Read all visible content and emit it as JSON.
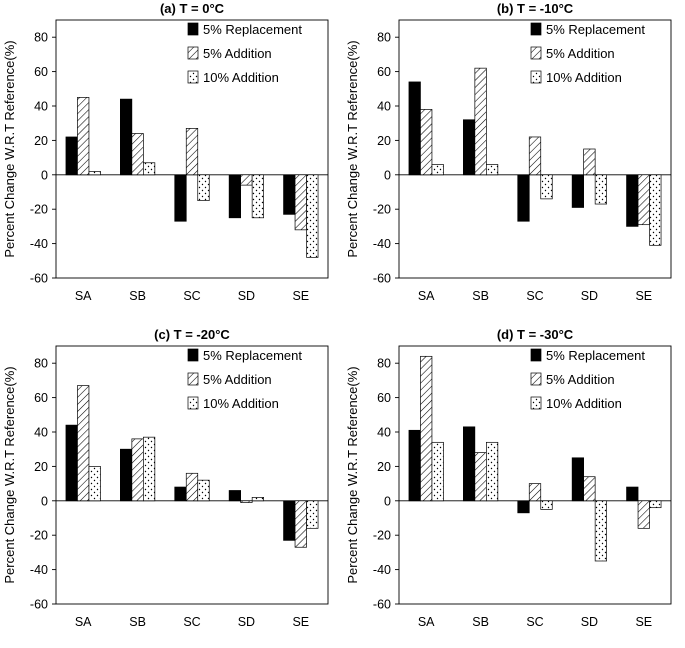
{
  "chart_data": [
    {
      "type": "bar",
      "title": "(a) T = 0°C",
      "ylabel": "Percent Change W.R.T Reference(%)",
      "xlabel": "",
      "categories": [
        "SA",
        "SB",
        "SC",
        "SD",
        "SE"
      ],
      "ylim": [
        -60,
        90
      ],
      "yticks": [
        -60,
        -40,
        -20,
        0,
        20,
        40,
        60,
        80
      ],
      "series": [
        {
          "name": "5% Replacement",
          "pattern": "solid",
          "values": [
            22,
            44,
            -27,
            -25,
            -23
          ]
        },
        {
          "name": "5% Addition",
          "pattern": "hatch",
          "values": [
            45,
            24,
            27,
            -6,
            -32
          ]
        },
        {
          "name": "10% Addition",
          "pattern": "dots",
          "values": [
            2,
            7,
            -15,
            -25,
            -48
          ]
        }
      ],
      "legend": "top-right"
    },
    {
      "type": "bar",
      "title": "(b) T = -10°C",
      "ylabel": "Percent Change W.R.T Reference(%)",
      "xlabel": "",
      "categories": [
        "SA",
        "SB",
        "SC",
        "SD",
        "SE"
      ],
      "ylim": [
        -60,
        90
      ],
      "yticks": [
        -60,
        -40,
        -20,
        0,
        20,
        40,
        60,
        80
      ],
      "series": [
        {
          "name": "5% Replacement",
          "pattern": "solid",
          "values": [
            54,
            32,
            -27,
            -19,
            -30
          ]
        },
        {
          "name": "5% Addition",
          "pattern": "hatch",
          "values": [
            38,
            62,
            22,
            15,
            -29
          ]
        },
        {
          "name": "10% Addition",
          "pattern": "dots",
          "values": [
            6,
            6,
            -14,
            -17,
            -41
          ]
        }
      ],
      "legend": "top-right"
    },
    {
      "type": "bar",
      "title": "(c) T = -20°C",
      "ylabel": "Percent Change W.R.T Reference(%)",
      "xlabel": "",
      "categories": [
        "SA",
        "SB",
        "SC",
        "SD",
        "SE"
      ],
      "ylim": [
        -60,
        90
      ],
      "yticks": [
        -60,
        -40,
        -20,
        0,
        20,
        40,
        60,
        80
      ],
      "series": [
        {
          "name": "5% Replacement",
          "pattern": "solid",
          "values": [
            44,
            30,
            8,
            6,
            -23
          ]
        },
        {
          "name": "5% Addition",
          "pattern": "hatch",
          "values": [
            67,
            36,
            16,
            -1,
            -27
          ]
        },
        {
          "name": "10% Addition",
          "pattern": "dots",
          "values": [
            20,
            37,
            12,
            2,
            -16
          ]
        }
      ],
      "legend": "top-right"
    },
    {
      "type": "bar",
      "title": "(d) T = -30°C",
      "ylabel": "Percent Change W.R.T Reference(%)",
      "xlabel": "",
      "categories": [
        "SA",
        "SB",
        "SC",
        "SD",
        "SE"
      ],
      "ylim": [
        -60,
        90
      ],
      "yticks": [
        -60,
        -40,
        -20,
        0,
        20,
        40,
        60,
        80
      ],
      "series": [
        {
          "name": "5% Replacement",
          "pattern": "solid",
          "values": [
            41,
            43,
            -7,
            25,
            8
          ]
        },
        {
          "name": "5% Addition",
          "pattern": "hatch",
          "values": [
            84,
            28,
            10,
            14,
            -16
          ]
        },
        {
          "name": "10% Addition",
          "pattern": "dots",
          "values": [
            34,
            34,
            -5,
            -35,
            -4
          ]
        }
      ],
      "legend": "top-right"
    }
  ]
}
